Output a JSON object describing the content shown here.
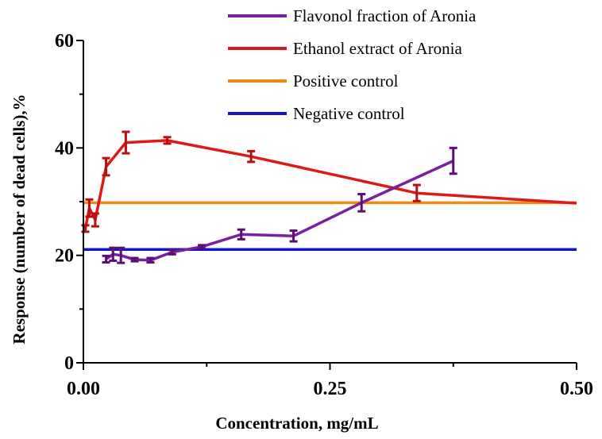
{
  "chart_data": {
    "type": "line",
    "title": "",
    "xlabel": "Concentration, mg/mL",
    "ylabel": "Response (number of dead cells),%",
    "xlim": [
      0,
      0.5
    ],
    "ylim": [
      0,
      60
    ],
    "x_ticks": [
      0.0,
      0.25,
      0.5
    ],
    "x_tick_labels": [
      "0.00",
      "0.25",
      "0.50"
    ],
    "y_ticks": [
      0,
      20,
      40,
      60
    ],
    "y_tick_labels": [
      "0",
      "20",
      "40",
      "60"
    ],
    "grid": false,
    "legend_position": "top-right",
    "series": [
      {
        "name": "Flavonol fraction of Aronia",
        "color": "#7b1fa2",
        "errorbar_color": "#5b0f73",
        "x": [
          0.023,
          0.03,
          0.038,
          0.052,
          0.068,
          0.09,
          0.12,
          0.16,
          0.213,
          0.282,
          0.375
        ],
        "y": [
          19.3,
          20.2,
          20.0,
          19.2,
          19.1,
          20.6,
          21.6,
          23.9,
          23.6,
          29.8,
          37.6
        ],
        "err": [
          0.6,
          1.2,
          1.4,
          0.3,
          0.4,
          0.4,
          0.3,
          0.9,
          1.0,
          1.6,
          2.4
        ]
      },
      {
        "name": "Ethanol extract of Aronia",
        "color": "#dc1a1a",
        "errorbar_color": "#b80f0f",
        "x": [
          0.002,
          0.006,
          0.012,
          0.023,
          0.043,
          0.085,
          0.17,
          0.338,
          0.5
        ],
        "y": [
          25.0,
          28.8,
          26.6,
          36.5,
          41.0,
          41.4,
          38.4,
          31.6,
          29.7
        ],
        "err": [
          0.6,
          1.6,
          1.2,
          1.6,
          2.0,
          0.6,
          1.0,
          1.5,
          0
        ]
      },
      {
        "name": "Positive control",
        "color": "#f08a0e",
        "x": [
          0.0,
          0.5
        ],
        "y": [
          29.8,
          29.8
        ]
      },
      {
        "name": "Negative control",
        "color": "#1515c8",
        "x": [
          0.0,
          0.5
        ],
        "y": [
          21.1,
          21.1
        ]
      }
    ]
  }
}
